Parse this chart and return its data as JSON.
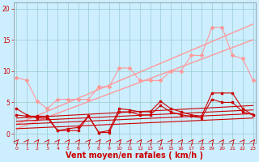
{
  "background_color": "#cceeff",
  "grid_color": "#99cccc",
  "xlabel": "Vent moyen/en rafales ( km/h )",
  "xlabel_fontsize": 7,
  "xlabel_color": "#cc0000",
  "yticks": [
    0,
    5,
    10,
    15,
    20
  ],
  "xticks": [
    0,
    1,
    2,
    3,
    4,
    5,
    6,
    7,
    8,
    9,
    10,
    11,
    12,
    13,
    14,
    15,
    16,
    17,
    18,
    19,
    20,
    21,
    22,
    23
  ],
  "xlim": [
    -0.3,
    23.3
  ],
  "ylim": [
    -1.5,
    21
  ],
  "tick_color": "#cc0000",
  "pink_color": "#ff9999",
  "red_color": "#cc0000",
  "pink_line1": [
    9.0,
    8.5,
    5.2,
    4.0,
    5.5,
    5.5,
    5.5,
    5.5,
    7.5,
    7.5,
    10.5,
    10.5,
    8.5,
    8.5,
    8.5,
    10.0,
    10.0,
    12.5,
    12.5,
    17.0,
    17.0,
    12.5,
    12.0,
    8.5
  ],
  "pink_line2_x": [
    0,
    23
  ],
  "pink_line2_y": [
    1.5,
    17.5
  ],
  "pink_line3_x": [
    0,
    23
  ],
  "pink_line3_y": [
    0.8,
    15.0
  ],
  "red_line1": [
    4.0,
    3.0,
    2.5,
    2.5,
    0.5,
    0.8,
    1.0,
    2.8,
    0.2,
    0.5,
    4.0,
    3.8,
    3.5,
    3.5,
    5.2,
    4.0,
    3.5,
    3.0,
    2.8,
    6.5,
    6.5,
    6.5,
    4.0,
    3.0
  ],
  "red_line2": [
    3.0,
    2.8,
    2.8,
    2.8,
    0.5,
    0.5,
    0.5,
    2.8,
    0.2,
    0.2,
    3.5,
    3.5,
    3.0,
    3.0,
    4.5,
    3.5,
    3.0,
    2.8,
    2.5,
    5.5,
    5.0,
    5.0,
    3.5,
    3.0
  ],
  "red_trend1_x": [
    0,
    23
  ],
  "red_trend1_y": [
    2.5,
    4.5
  ],
  "red_trend2_x": [
    0,
    23
  ],
  "red_trend2_y": [
    2.0,
    3.8
  ],
  "red_trend3_x": [
    0,
    23
  ],
  "red_trend3_y": [
    1.5,
    3.2
  ],
  "red_trend4_x": [
    0,
    23
  ],
  "red_trend4_y": [
    0.8,
    2.5
  ],
  "arrows_x": [
    0,
    1,
    2,
    3,
    4,
    5,
    6,
    7,
    8,
    9,
    10,
    11,
    12,
    13,
    14,
    15,
    16,
    17,
    18,
    19,
    20,
    21,
    22,
    23
  ]
}
